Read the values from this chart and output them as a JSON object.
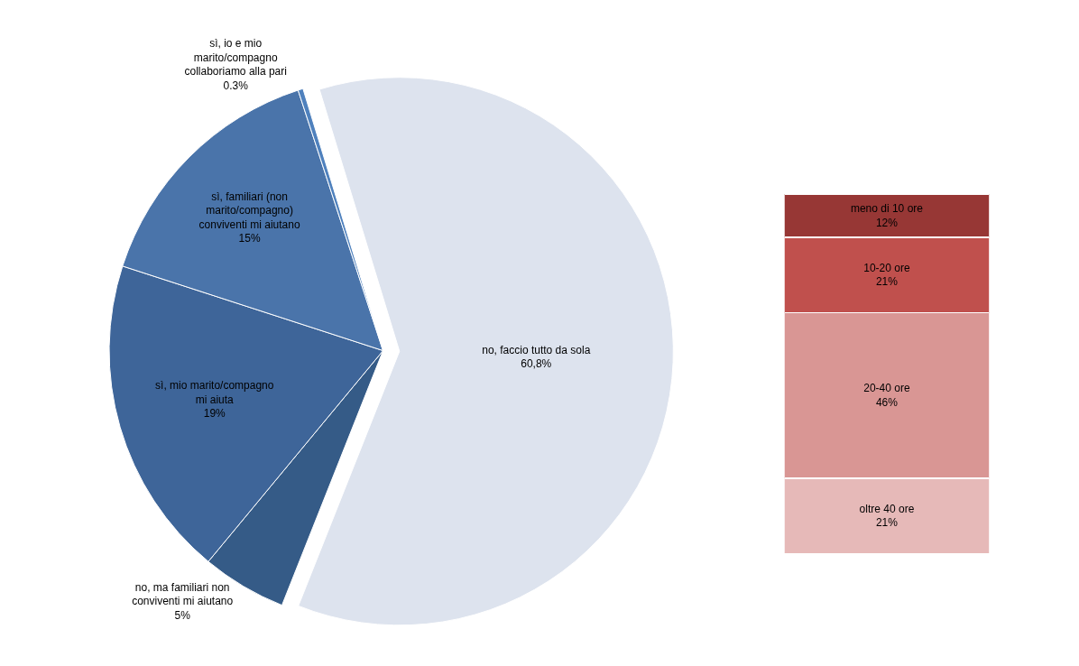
{
  "chart_data": [
    {
      "type": "pie",
      "categories": [
        "no, faccio tutto da sola",
        "no, ma familiari non conviventi mi aiutano",
        "sì, mio marito/compagno mi aiuta",
        "sì, familiari (non marito/compagno) conviventi mi aiutano",
        "sì, io e mio marito/compagno collaboriamo alla pari"
      ],
      "values": [
        60.8,
        5,
        19,
        15,
        0.3
      ],
      "value_labels": [
        "60,8%",
        "5%",
        "19%",
        "15%",
        "0.3%"
      ],
      "colors": [
        "#dde3ee",
        "#355b87",
        "#3e6599",
        "#4a74aa",
        "#4f81bd"
      ]
    },
    {
      "type": "bar",
      "stacked": true,
      "categories": [
        null
      ],
      "series": [
        {
          "name": "oltre 40 ore",
          "color": "#e6b9b8",
          "values": [
            21
          ],
          "value_labels": [
            "21%"
          ]
        },
        {
          "name": "20-40 ore",
          "color": "#d99694",
          "values": [
            46
          ],
          "value_labels": [
            "46%"
          ]
        },
        {
          "name": "10-20 ore",
          "color": "#c0504d",
          "values": [
            21
          ],
          "value_labels": [
            "21%"
          ]
        },
        {
          "name": "meno di 10 ore",
          "color": "#973735",
          "values": [
            12
          ],
          "value_labels": [
            "12%"
          ]
        }
      ]
    }
  ]
}
